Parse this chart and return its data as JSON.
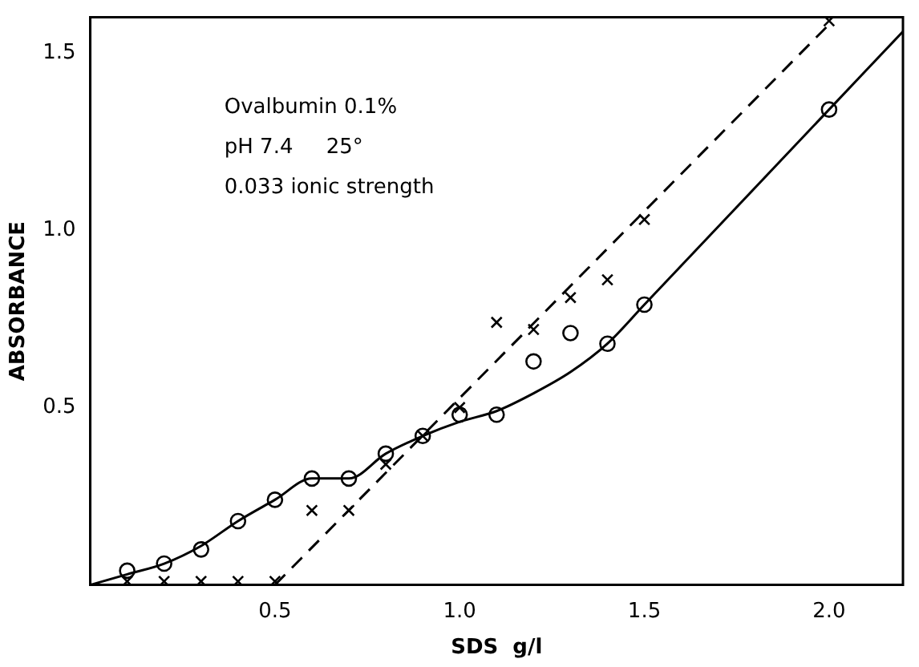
{
  "chart_data": {
    "type": "scatter",
    "xlabel": "SDS  g/l",
    "ylabel": "ABSORBANCE",
    "annotations": [
      "Ovalbumin 0.1%",
      "pH 7.4     25°",
      "0.033 ionic strength"
    ],
    "xlim": [
      0,
      2.2
    ],
    "ylim": [
      0,
      1.6
    ],
    "xticks": [
      0.5,
      {
        "value": 1,
        "label": "1.0"
      },
      1.5,
      {
        "value": 2,
        "label": "2.0"
      }
    ],
    "yticks": [
      0.5,
      {
        "value": 1,
        "label": "1.0"
      },
      1.5
    ],
    "grid": false,
    "legend": false,
    "series": [
      {
        "type": "line",
        "color": "#000000",
        "marker": "none",
        "line_style": "solid",
        "x": [
          0,
          0.1,
          0.2,
          0.3,
          0.4,
          0.5,
          0.6,
          0.7,
          0.8,
          0.9,
          1.0,
          1.1,
          1.2,
          1.3,
          1.4,
          1.5,
          2.0,
          2.2
        ],
        "values": [
          0,
          0.03,
          0.06,
          0.11,
          0.18,
          0.24,
          0.3,
          0.3,
          0.37,
          0.42,
          0.46,
          0.49,
          0.54,
          0.6,
          0.68,
          0.79,
          1.34,
          1.56
        ]
      },
      {
        "type": "line",
        "color": "#000000",
        "marker": "none",
        "line_style": "dashed",
        "x": [
          0.5,
          2.0
        ],
        "values": [
          0,
          1.58
        ]
      },
      {
        "color": "#000000",
        "marker": "circle",
        "x": [
          0.1,
          0.2,
          0.3,
          0.4,
          0.5,
          0.6,
          0.7,
          0.8,
          0.9,
          1.0,
          1.1,
          1.2,
          1.3,
          1.4,
          1.5,
          2.0
        ],
        "values": [
          0.04,
          0.06,
          0.1,
          0.18,
          0.24,
          0.3,
          0.3,
          0.37,
          0.42,
          0.48,
          0.48,
          0.63,
          0.71,
          0.68,
          0.79,
          1.34
        ]
      },
      {
        "color": "#000000",
        "marker": "cross",
        "x": [
          0.1,
          0.2,
          0.3,
          0.4,
          0.5,
          0.6,
          0.7,
          0.8,
          0.9,
          1.0,
          1.1,
          1.2,
          1.3,
          1.4,
          1.5,
          2.0
        ],
        "values": [
          0.01,
          0.01,
          0.01,
          0.01,
          0.01,
          0.21,
          0.21,
          0.34,
          0.42,
          0.5,
          0.74,
          0.72,
          0.81,
          0.86,
          1.03,
          1.59
        ]
      }
    ]
  }
}
